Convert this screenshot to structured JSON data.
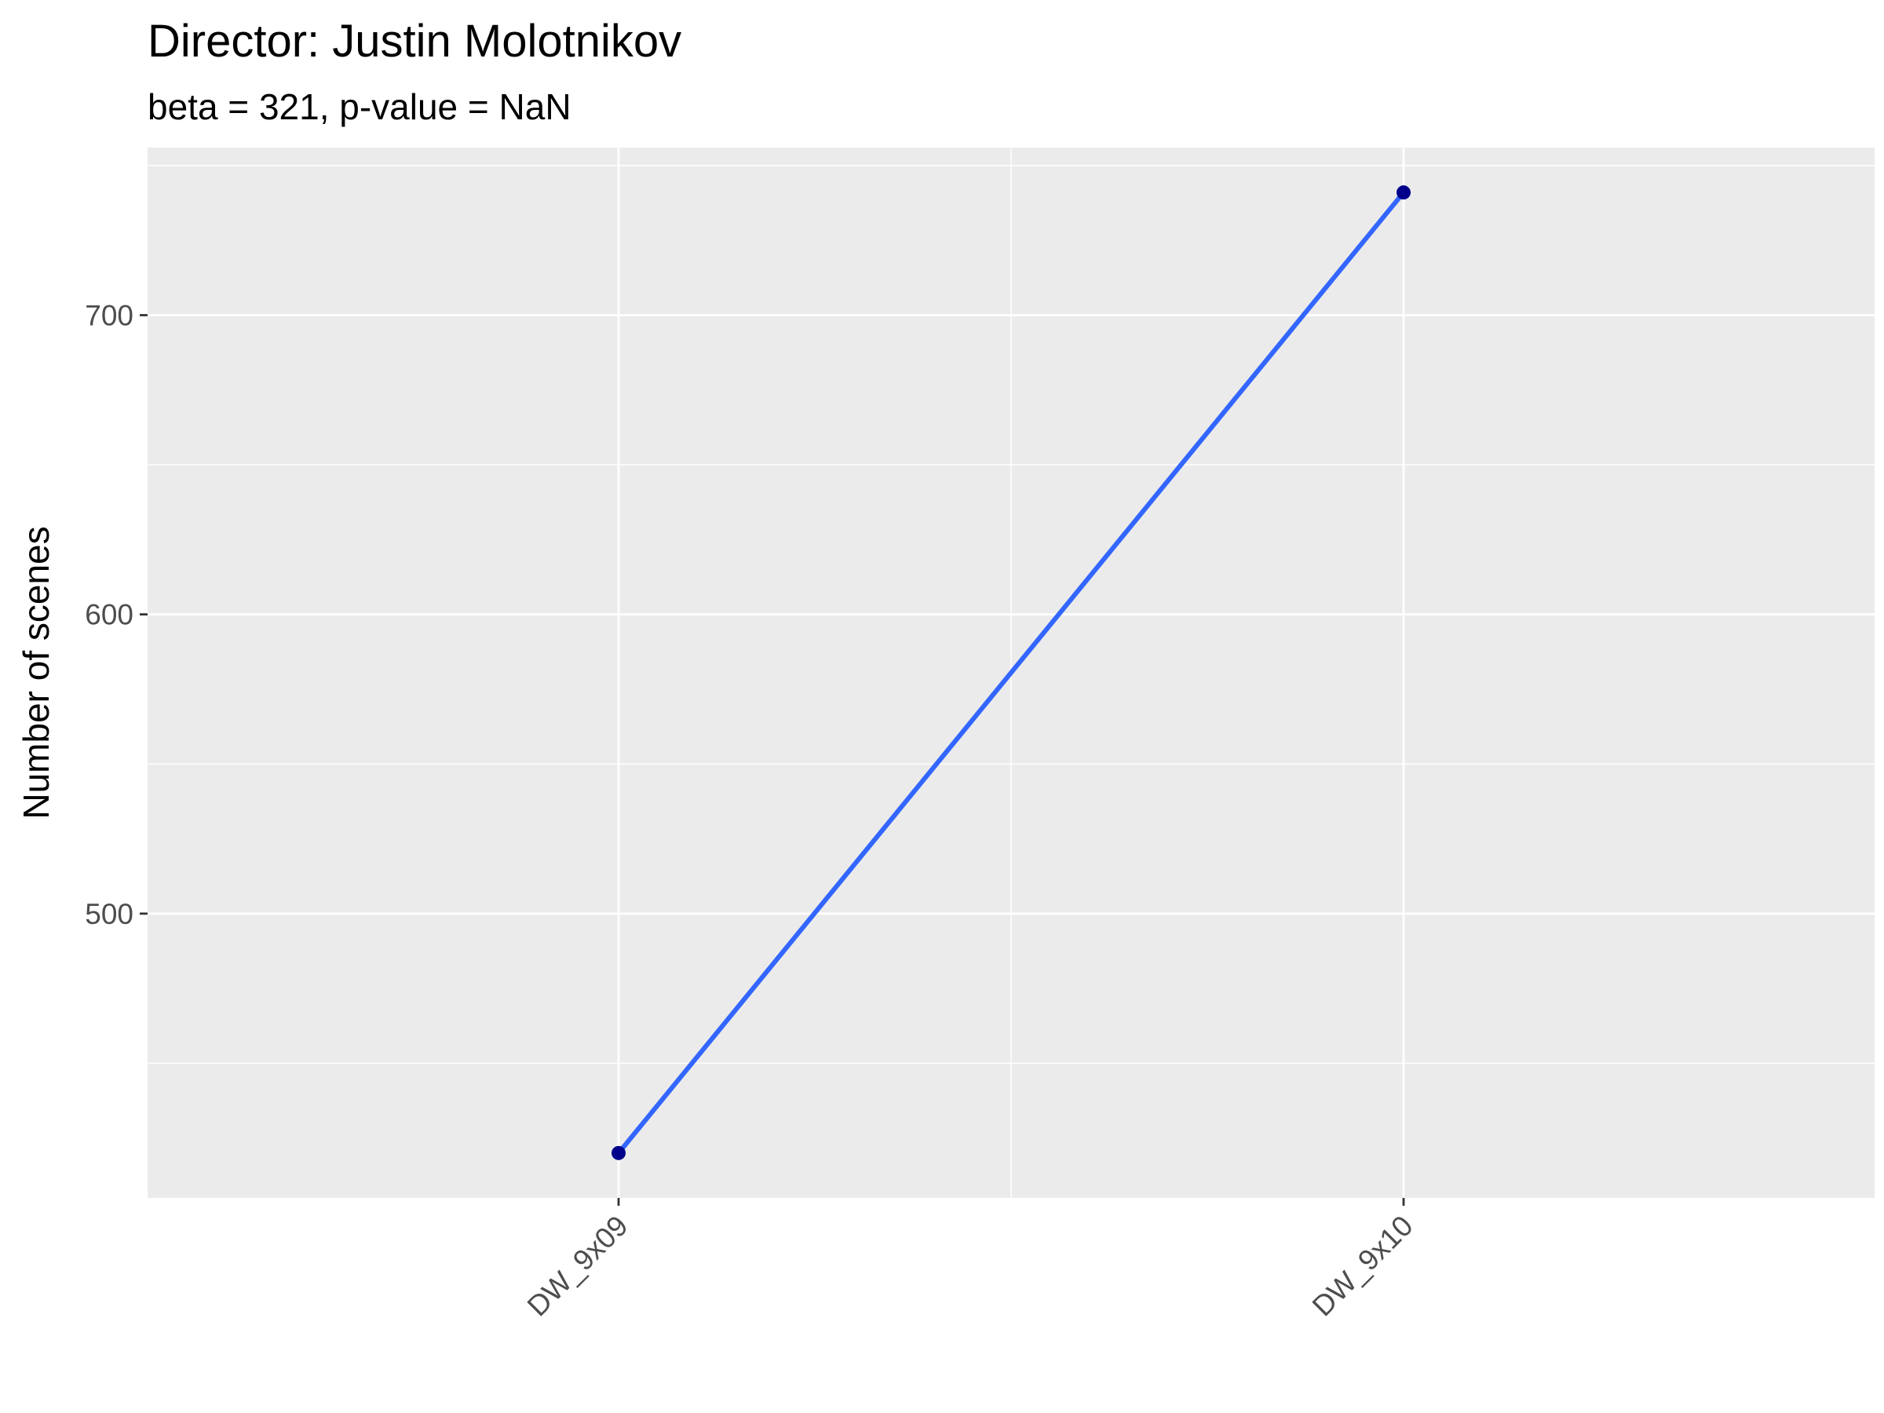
{
  "chart_data": {
    "type": "line",
    "title": "Director: Justin Molotnikov",
    "subtitle": "beta = 321, p-value = NaN",
    "xlabel": "",
    "ylabel": "Number of scenes",
    "categories": [
      "DW_9x09",
      "DW_9x10"
    ],
    "series": [
      {
        "values": [
          420,
          741
        ]
      }
    ],
    "ylim": [
      405,
      756
    ],
    "yticks": [
      500,
      600,
      700
    ],
    "grid": true,
    "legend": "none",
    "colors": {
      "panel": "#ebebeb",
      "grid": "#ffffff",
      "line": "#3366ff",
      "point": "#00008b"
    }
  }
}
